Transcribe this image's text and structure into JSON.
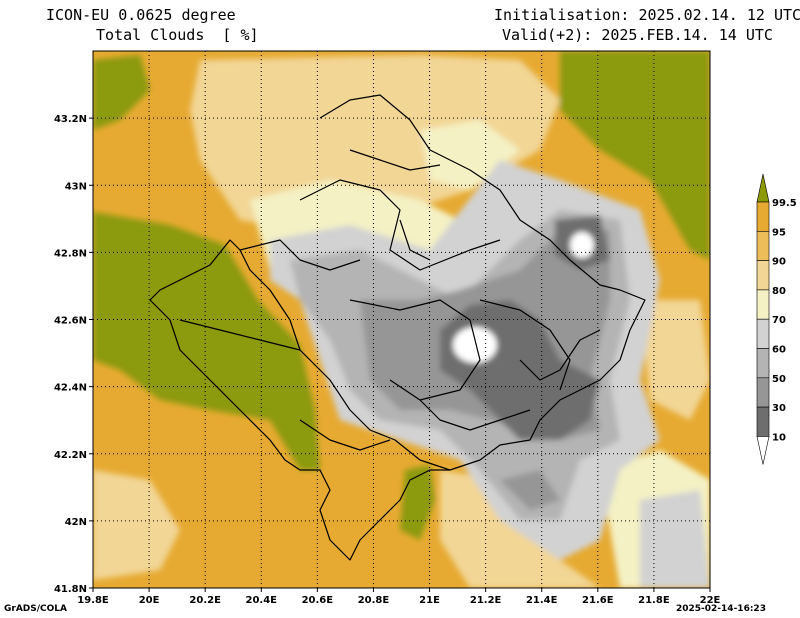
{
  "header": {
    "model": "ICON-EU 0.0625 degree",
    "variable": "Total Clouds  [ %]",
    "init": "Initialisation: 2025.02.14. 12 UTC",
    "valid": "Valid(+2): 2025.FEB.14. 14 UTC"
  },
  "footer": {
    "software": "GrADS/COLA",
    "timestamp": "2025-02-14-16:23"
  },
  "map": {
    "lon_range": [
      19.8,
      22.0
    ],
    "lat_range": [
      41.8,
      43.4
    ],
    "lon_ticks": [
      "19.8E",
      "20E",
      "20.2E",
      "20.4E",
      "20.6E",
      "20.8E",
      "21E",
      "21.2E",
      "21.4E",
      "21.6E",
      "21.8E",
      "22E"
    ],
    "lat_ticks": [
      "41.8N",
      "42N",
      "42.2N",
      "42.4N",
      "42.6N",
      "42.8N",
      "43N",
      "43.2N"
    ],
    "gridlines": true
  },
  "colorbar": {
    "labels": [
      "99.5",
      "95",
      "90",
      "80",
      "70",
      "60",
      "50",
      "30",
      "10"
    ],
    "colors": {
      "above_99_5": "#8c9a0a",
      "95_99_5": "#e6aa32",
      "90_95": "#edbd5a",
      "80_90": "#f2d695",
      "70_80": "#f4f1c4",
      "60_70": "#d2d2d2",
      "50_60": "#b4b4b4",
      "30_50": "#969696",
      "10_30": "#6e6e6e",
      "below_10": "#ffffff"
    }
  }
}
